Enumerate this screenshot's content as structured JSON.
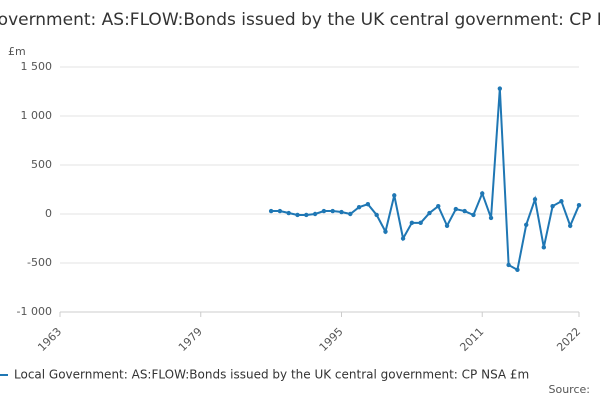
{
  "chart_data": {
    "type": "line",
    "title": "Local Government: AS:FLOW:Bonds issued by the UK central government: CP NSA £m",
    "y_label": "£m",
    "source": "Source:",
    "x": [
      1987,
      1988,
      1989,
      1990,
      1991,
      1992,
      1993,
      1994,
      1995,
      1996,
      1997,
      1998,
      1999,
      2000,
      2001,
      2002,
      2003,
      2004,
      2005,
      2006,
      2007,
      2008,
      2009,
      2010,
      2011,
      2012,
      2013,
      2014,
      2015,
      2016,
      2017,
      2018,
      2019,
      2020,
      2021,
      2022
    ],
    "series": [
      {
        "name": "Local Government: AS:FLOW:Bonds issued by the UK central government: CP NSA £m",
        "color": "#1f77b4",
        "values": [
          30,
          30,
          10,
          -10,
          -10,
          0,
          30,
          30,
          20,
          0,
          70,
          100,
          -10,
          -180,
          190,
          -250,
          -90,
          -90,
          10,
          80,
          -120,
          50,
          30,
          -10,
          210,
          -40,
          1280,
          -520,
          -570,
          -110,
          150,
          -340,
          80,
          130,
          -120,
          90
        ]
      }
    ],
    "xlim": [
      1963,
      2022
    ],
    "xticks": [
      1963,
      1979,
      1995,
      2011,
      2022
    ],
    "ylim": [
      -1000,
      1500
    ],
    "yticks": [
      {
        "value": -1000,
        "label": "-1 000"
      },
      -500,
      0,
      500,
      {
        "value": 1000,
        "label": "1 000"
      },
      {
        "value": 1500,
        "label": "1 500"
      }
    ],
    "grid": true
  }
}
